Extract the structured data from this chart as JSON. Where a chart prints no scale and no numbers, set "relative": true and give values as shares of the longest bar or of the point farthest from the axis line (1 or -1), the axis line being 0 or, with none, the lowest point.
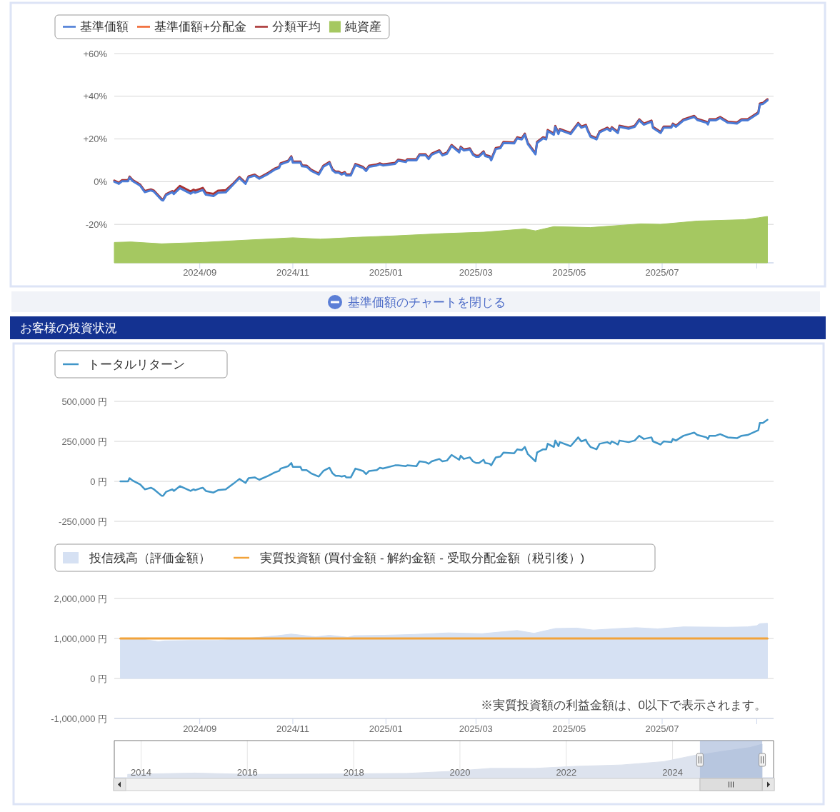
{
  "chart_data": [
    {
      "type": "line",
      "legend": "top left",
      "grid": "y",
      "xlim": [
        "2024-07-07",
        "2025-09-12"
      ],
      "xticks": [
        {
          "value": "2024-09-01",
          "label": "2024/09"
        },
        {
          "value": "2024-11-01",
          "label": "2024/11"
        },
        {
          "value": "2025-01-01",
          "label": "2025/01"
        },
        {
          "value": "2025-03-01",
          "label": "2025/03"
        },
        {
          "value": "2025-05-01",
          "label": "2025/05"
        },
        {
          "value": "2025-07-01",
          "label": "2025/07"
        },
        {
          "value": "2025-09-01",
          "label": null
        }
      ],
      "ylim": [
        -38,
        60
      ],
      "yticks": [
        {
          "value": 60,
          "label": "+60%"
        },
        {
          "value": 40,
          "label": "+40%"
        },
        {
          "value": 20,
          "label": "+20%"
        },
        {
          "value": 0,
          "label": "0%"
        },
        {
          "value": -20,
          "label": "-20%"
        }
      ],
      "annotations": [
        "基準価額のチャートを閉じる"
      ],
      "x": [
        "2024-07-07",
        "2024-07-10",
        "2024-07-12",
        "2024-07-16",
        "2024-07-17",
        "2024-07-19",
        "2024-07-24",
        "2024-07-27",
        "2024-07-31",
        "2024-08-02",
        "2024-08-07",
        "2024-08-08",
        "2024-08-10",
        "2024-08-14",
        "2024-08-15",
        "2024-08-19",
        "2024-08-26",
        "2024-08-28",
        "2024-08-29",
        "2024-09-01",
        "2024-09-03",
        "2024-09-05",
        "2024-09-10",
        "2024-09-13",
        "2024-09-18",
        "2024-09-23",
        "2024-09-27",
        "2024-10-01",
        "2024-10-03",
        "2024-10-07",
        "2024-10-10",
        "2024-10-16",
        "2024-10-20",
        "2024-10-23",
        "2024-10-24",
        "2024-10-29",
        "2024-10-31",
        "2024-11-01",
        "2024-11-06",
        "2024-11-07",
        "2024-11-10",
        "2024-11-13",
        "2024-11-18",
        "2024-11-21",
        "2024-11-25",
        "2024-11-27",
        "2024-11-29",
        "2024-12-01",
        "2024-12-03",
        "2024-12-05",
        "2024-12-06",
        "2024-12-09",
        "2024-12-12",
        "2024-12-17",
        "2024-12-19",
        "2024-12-21",
        "2024-12-26",
        "2024-12-28",
        "2024-12-30",
        "2025-01-07",
        "2025-01-09",
        "2025-01-14",
        "2025-01-15",
        "2025-01-21",
        "2025-01-23",
        "2025-01-27",
        "2025-01-29",
        "2025-01-31",
        "2025-02-05",
        "2025-02-07",
        "2025-02-10",
        "2025-02-13",
        "2025-02-18",
        "2025-02-19",
        "2025-02-21",
        "2025-02-25",
        "2025-02-27",
        "2025-03-01",
        "2025-03-03",
        "2025-03-06",
        "2025-03-07",
        "2025-03-10",
        "2025-03-11",
        "2025-03-14",
        "2025-03-17",
        "2025-03-19",
        "2025-03-26",
        "2025-03-28",
        "2025-03-31",
        "2025-04-02",
        "2025-04-04",
        "2025-04-09",
        "2025-04-10",
        "2025-04-14",
        "2025-04-16",
        "2025-04-17",
        "2025-04-21",
        "2025-04-22",
        "2025-04-24",
        "2025-04-25",
        "2025-05-02",
        "2025-05-07",
        "2025-05-09",
        "2025-05-12",
        "2025-05-13",
        "2025-05-15",
        "2025-05-19",
        "2025-05-21",
        "2025-05-26",
        "2025-05-28",
        "2025-05-29",
        "2025-06-02",
        "2025-06-03",
        "2025-06-09",
        "2025-06-13",
        "2025-06-16",
        "2025-06-19",
        "2025-06-24",
        "2025-06-25",
        "2025-06-30",
        "2025-07-02",
        "2025-07-07",
        "2025-07-08",
        "2025-07-10",
        "2025-07-15",
        "2025-07-22",
        "2025-07-24",
        "2025-07-30",
        "2025-07-31",
        "2025-08-01",
        "2025-08-05",
        "2025-08-08",
        "2025-08-13",
        "2025-08-19",
        "2025-08-22",
        "2025-08-26",
        "2025-09-02",
        "2025-09-03",
        "2025-09-05",
        "2025-09-08"
      ],
      "series": [
        {
          "name": "基準価額",
          "color": "#4a7bd6",
          "values": [
            0.0,
            -1.0,
            0.2,
            0.2,
            1.9,
            0.3,
            -1.9,
            -4.9,
            -4.1,
            -4.7,
            -8.6,
            -8.8,
            -6.3,
            -4.9,
            -5.8,
            -3.0,
            -5.6,
            -4.7,
            -5.2,
            -4.4,
            -3.9,
            -6.1,
            -6.7,
            -5.2,
            -5.0,
            -1.3,
            1.7,
            -1.0,
            2.0,
            2.8,
            1.4,
            3.7,
            5.6,
            6.4,
            8.1,
            9.4,
            11.4,
            8.9,
            8.9,
            7.2,
            7.0,
            5.1,
            3.3,
            7.0,
            8.7,
            5.3,
            4.2,
            4.2,
            3.3,
            4.0,
            2.9,
            2.9,
            7.8,
            6.4,
            5.0,
            7.0,
            7.6,
            8.1,
            7.6,
            8.3,
            9.8,
            9.2,
            10.0,
            10.0,
            12.3,
            12.3,
            10.6,
            12.6,
            14.2,
            12.3,
            13.1,
            16.7,
            13.7,
            15.9,
            14.6,
            15.1,
            12.6,
            11.7,
            11.7,
            13.7,
            12.0,
            11.4,
            10.0,
            15.3,
            15.7,
            18.1,
            17.9,
            20.3,
            19.8,
            22.0,
            17.6,
            12.8,
            18.1,
            20.3,
            19.8,
            23.7,
            22.0,
            25.6,
            22.3,
            24.2,
            22.3,
            27.0,
            25.3,
            26.1,
            24.2,
            21.1,
            19.8,
            23.1,
            24.8,
            23.7,
            25.0,
            22.8,
            25.7,
            24.8,
            25.7,
            28.7,
            26.7,
            28.1,
            25.1,
            22.8,
            25.3,
            25.3,
            26.7,
            25.7,
            28.7,
            30.3,
            28.9,
            27.6,
            26.8,
            28.7,
            28.7,
            29.8,
            27.6,
            27.2,
            28.7,
            28.7,
            32.0,
            36.1,
            36.4,
            38.1
          ]
        },
        {
          "name": "基準価額+分配金",
          "color": "#f0652f",
          "values": [
            null,
            null,
            null,
            null,
            null,
            null,
            null,
            null,
            null,
            null,
            null,
            null,
            null,
            null,
            null,
            null,
            null,
            null,
            null,
            null,
            null,
            null,
            null,
            null,
            null,
            null,
            null,
            null,
            null,
            null,
            null,
            null,
            null,
            null,
            null,
            null,
            null,
            null,
            null,
            null,
            null,
            null,
            null,
            null,
            null,
            null,
            null,
            null,
            null,
            null,
            null,
            null,
            null,
            null,
            null,
            null,
            null,
            null,
            null,
            null,
            null,
            null,
            null,
            null,
            null,
            null,
            null,
            null,
            null,
            null,
            null,
            null,
            null,
            null,
            null,
            null,
            null,
            null,
            null,
            null,
            null,
            null,
            null,
            null,
            null,
            null,
            null,
            null,
            null,
            null,
            null,
            null,
            null,
            null,
            null,
            null,
            null,
            null,
            null,
            null,
            null,
            null,
            null,
            null,
            null,
            null,
            null,
            null,
            null,
            null,
            null,
            null,
            null,
            null,
            null,
            null,
            null,
            null,
            null,
            null,
            null,
            null,
            null,
            null,
            null,
            null,
            null,
            null,
            null,
            null,
            null,
            null,
            null,
            null,
            null,
            null,
            null,
            null,
            null,
            null
          ]
        },
        {
          "name": "分類平均",
          "color": "#a83232",
          "values": [
            0.5,
            -0.5,
            0.7,
            0.7,
            2.4,
            0.8,
            -1.4,
            -4.4,
            -3.6,
            -4.2,
            -8.1,
            -8.3,
            -5.8,
            -4.4,
            -4.8,
            -2.0,
            -4.6,
            -3.7,
            -4.2,
            -3.4,
            -2.9,
            -5.1,
            -5.7,
            -4.2,
            -4.0,
            -0.8,
            2.2,
            -0.5,
            2.5,
            3.3,
            1.9,
            4.2,
            6.1,
            6.9,
            8.6,
            9.9,
            11.9,
            9.4,
            9.4,
            7.7,
            7.5,
            5.6,
            3.8,
            7.5,
            9.2,
            5.8,
            4.7,
            4.7,
            3.8,
            4.5,
            3.4,
            3.4,
            8.3,
            6.9,
            5.5,
            7.5,
            8.1,
            8.6,
            8.1,
            8.8,
            10.3,
            9.7,
            10.5,
            10.5,
            12.8,
            12.8,
            11.1,
            13.1,
            14.7,
            12.8,
            13.6,
            17.2,
            14.2,
            16.4,
            15.1,
            15.6,
            13.1,
            12.2,
            12.2,
            14.2,
            12.5,
            11.9,
            10.5,
            15.8,
            16.2,
            18.6,
            18.4,
            20.8,
            20.3,
            22.5,
            18.1,
            13.3,
            18.6,
            20.8,
            20.3,
            24.2,
            22.5,
            26.1,
            22.8,
            24.7,
            22.8,
            27.5,
            25.8,
            26.6,
            24.7,
            21.6,
            20.3,
            23.6,
            25.3,
            24.2,
            25.5,
            23.3,
            26.2,
            25.3,
            26.2,
            29.2,
            27.2,
            28.6,
            25.6,
            23.3,
            25.8,
            25.8,
            27.2,
            26.2,
            29.2,
            30.8,
            29.4,
            28.1,
            27.3,
            29.2,
            29.2,
            30.3,
            28.1,
            27.7,
            29.2,
            29.2,
            32.5,
            36.6,
            36.9,
            38.6
          ]
        }
      ]
    },
    {
      "type": "area",
      "relative": true,
      "legend": "top left",
      "tick_labels": false,
      "xlim": [
        "2024-07-07",
        "2025-09-12"
      ],
      "x": [
        "2024-07-07",
        "2024-07-18",
        "2024-08-07",
        "2024-09-03",
        "2024-09-26",
        "2024-11-01",
        "2024-11-19",
        "2024-12-13",
        "2025-01-06",
        "2025-02-07",
        "2025-03-06",
        "2025-04-02",
        "2025-04-09",
        "2025-04-21",
        "2025-05-15",
        "2025-06-17",
        "2025-06-30",
        "2025-07-24",
        "2025-08-24",
        "2025-09-02",
        "2025-09-08"
      ],
      "series": [
        {
          "name": "純資産",
          "color": "#a5c861",
          "values": [
            0.44,
            0.45,
            0.41,
            0.44,
            0.48,
            0.54,
            0.51,
            0.55,
            0.58,
            0.63,
            0.66,
            0.73,
            0.69,
            0.78,
            0.76,
            0.84,
            0.83,
            0.9,
            0.93,
            0.97,
            1
          ]
        }
      ]
    },
    {
      "type": "line",
      "title": "お客様の投資状況",
      "legend": "top left",
      "grid": "y",
      "tick_labels": "y",
      "xlim": [
        "2024-07-07",
        "2025-09-12"
      ],
      "ylim": [
        -250000,
        500000
      ],
      "yticks": [
        {
          "value": 500000,
          "label": "500,000 円"
        },
        {
          "value": 250000,
          "label": "250,000 円"
        },
        {
          "value": 0,
          "label": "0 円"
        },
        {
          "value": -250000,
          "label": "-250,000 円"
        }
      ],
      "x": [
        "2024-07-11",
        "2024-07-16",
        "2024-07-17",
        "2024-07-19",
        "2024-07-24",
        "2024-07-27",
        "2024-07-31",
        "2024-08-02",
        "2024-08-07",
        "2024-08-08",
        "2024-08-10",
        "2024-08-14",
        "2024-08-15",
        "2024-08-19",
        "2024-08-26",
        "2024-08-28",
        "2024-08-29",
        "2024-09-01",
        "2024-09-03",
        "2024-09-05",
        "2024-09-10",
        "2024-09-13",
        "2024-09-18",
        "2024-09-23",
        "2024-09-27",
        "2024-10-01",
        "2024-10-03",
        "2024-10-07",
        "2024-10-10",
        "2024-10-16",
        "2024-10-20",
        "2024-10-23",
        "2024-10-24",
        "2024-10-29",
        "2024-10-31",
        "2024-11-01",
        "2024-11-06",
        "2024-11-07",
        "2024-11-10",
        "2024-11-13",
        "2024-11-18",
        "2024-11-21",
        "2024-11-25",
        "2024-11-27",
        "2024-11-29",
        "2024-12-01",
        "2024-12-03",
        "2024-12-05",
        "2024-12-06",
        "2024-12-09",
        "2024-12-12",
        "2024-12-17",
        "2024-12-19",
        "2024-12-21",
        "2024-12-26",
        "2024-12-28",
        "2024-12-30",
        "2025-01-07",
        "2025-01-09",
        "2025-01-14",
        "2025-01-15",
        "2025-01-21",
        "2025-01-23",
        "2025-01-27",
        "2025-01-29",
        "2025-01-31",
        "2025-02-05",
        "2025-02-07",
        "2025-02-10",
        "2025-02-13",
        "2025-02-18",
        "2025-02-19",
        "2025-02-21",
        "2025-02-25",
        "2025-02-27",
        "2025-03-01",
        "2025-03-03",
        "2025-03-06",
        "2025-03-07",
        "2025-03-10",
        "2025-03-11",
        "2025-03-14",
        "2025-03-17",
        "2025-03-19",
        "2025-03-26",
        "2025-03-28",
        "2025-03-31",
        "2025-04-02",
        "2025-04-04",
        "2025-04-09",
        "2025-04-10",
        "2025-04-14",
        "2025-04-16",
        "2025-04-17",
        "2025-04-21",
        "2025-04-22",
        "2025-04-24",
        "2025-04-25",
        "2025-05-02",
        "2025-05-07",
        "2025-05-09",
        "2025-05-12",
        "2025-05-13",
        "2025-05-15",
        "2025-05-19",
        "2025-05-21",
        "2025-05-26",
        "2025-05-28",
        "2025-05-29",
        "2025-06-02",
        "2025-06-03",
        "2025-06-09",
        "2025-06-13",
        "2025-06-16",
        "2025-06-19",
        "2025-06-24",
        "2025-06-25",
        "2025-06-30",
        "2025-07-02",
        "2025-07-07",
        "2025-07-08",
        "2025-07-10",
        "2025-07-15",
        "2025-07-22",
        "2025-07-24",
        "2025-07-30",
        "2025-07-31",
        "2025-08-01",
        "2025-08-05",
        "2025-08-08",
        "2025-08-13",
        "2025-08-19",
        "2025-08-22",
        "2025-08-26",
        "2025-09-02",
        "2025-09-03",
        "2025-09-05",
        "2025-09-08"
      ],
      "series": [
        {
          "name": "トータルリターン",
          "color": "#4096c8",
          "values": [
            0,
            0,
            20000,
            5000,
            -20000,
            -50000,
            -40000,
            -50000,
            -90000,
            -90000,
            -65000,
            -50000,
            -60000,
            -30000,
            -60000,
            -50000,
            -55000,
            -45000,
            -40000,
            -60000,
            -70000,
            -55000,
            -50000,
            -15000,
            15000,
            -10000,
            20000,
            25000,
            10000,
            35000,
            55000,
            65000,
            80000,
            95000,
            115000,
            90000,
            90000,
            70000,
            70000,
            50000,
            30000,
            65000,
            85000,
            50000,
            35000,
            35000,
            30000,
            35000,
            25000,
            25000,
            80000,
            65000,
            45000,
            65000,
            70000,
            85000,
            80000,
            100000,
            100000,
            95000,
            100000,
            95000,
            125000,
            120000,
            110000,
            125000,
            140000,
            125000,
            130000,
            165000,
            135000,
            160000,
            140000,
            150000,
            125000,
            115000,
            115000,
            135000,
            115000,
            110000,
            100000,
            150000,
            155000,
            180000,
            175000,
            200000,
            195000,
            215000,
            170000,
            125000,
            180000,
            200000,
            200000,
            235000,
            215000,
            255000,
            220000,
            245000,
            220000,
            275000,
            250000,
            260000,
            240000,
            215000,
            200000,
            235000,
            245000,
            235000,
            250000,
            230000,
            255000,
            245000,
            255000,
            285000,
            265000,
            275000,
            250000,
            230000,
            250000,
            245000,
            265000,
            255000,
            285000,
            305000,
            290000,
            275000,
            265000,
            285000,
            285000,
            295000,
            275000,
            270000,
            285000,
            290000,
            320000,
            365000,
            365000,
            385000
          ]
        }
      ]
    },
    {
      "type": "area",
      "legend": "top left",
      "grid": "y",
      "xlim": [
        "2024-07-07",
        "2025-09-12"
      ],
      "xticks": [
        {
          "value": "2024-09-01",
          "label": "2024/09"
        },
        {
          "value": "2024-11-01",
          "label": "2024/11"
        },
        {
          "value": "2025-01-01",
          "label": "2025/01"
        },
        {
          "value": "2025-03-01",
          "label": "2025/03"
        },
        {
          "value": "2025-05-01",
          "label": "2025/05"
        },
        {
          "value": "2025-07-01",
          "label": "2025/07"
        },
        {
          "value": "2025-09-01",
          "label": null
        }
      ],
      "ylim": [
        -1000000,
        2000000
      ],
      "yticks": [
        {
          "value": 2000000,
          "label": "2,000,000 円"
        },
        {
          "value": 1000000,
          "label": "1,000,000 円"
        },
        {
          "value": 0,
          "label": "0 円"
        },
        {
          "value": -1000000,
          "label": "-1,000,000 円"
        }
      ],
      "annotations": [
        "※実質投資額の利益金額は、0以下で表示されます。"
      ],
      "series": [
        {
          "name": "投信残高（評価金額）",
          "color": "#d6e1f3",
          "x": [
            "2024-07-11",
            "2024-07-24",
            "2024-08-05",
            "2024-08-09",
            "2024-08-27",
            "2024-09-13",
            "2024-10-02",
            "2024-10-22",
            "2024-10-31",
            "2024-11-16",
            "2024-11-25",
            "2024-12-07",
            "2024-12-11",
            "2024-12-31",
            "2025-01-19",
            "2025-02-11",
            "2025-03-05",
            "2025-03-28",
            "2025-04-08",
            "2025-04-22",
            "2025-05-06",
            "2025-05-17",
            "2025-06-03",
            "2025-06-14",
            "2025-06-28",
            "2025-07-15",
            "2025-08-12",
            "2025-08-26",
            "2025-09-01",
            "2025-09-03",
            "2025-09-08"
          ],
          "values": [
            1000000,
            990000,
            920000,
            940000,
            950000,
            950000,
            1000000,
            1070000,
            1110000,
            1040000,
            1080000,
            1030000,
            1070000,
            1080000,
            1100000,
            1140000,
            1120000,
            1200000,
            1130000,
            1250000,
            1260000,
            1210000,
            1250000,
            1270000,
            1240000,
            1290000,
            1280000,
            1290000,
            1320000,
            1370000,
            1380000
          ]
        },
        {
          "name": "実質投資額 (買付金額 - 解約金額 - 受取分配金額（税引後）)",
          "type": "line",
          "color": "#f2a33a",
          "x": [
            "2024-07-11",
            "2025-09-08"
          ],
          "values": [
            1000000,
            1000000
          ]
        }
      ]
    },
    {
      "type": "area",
      "relative": true,
      "grid": "x",
      "xlim": [
        "2013-07-01",
        "2025-11-25"
      ],
      "xticks": [
        {
          "value": "2014-01-01",
          "label": "2014"
        },
        {
          "value": "2016-01-01",
          "label": "2016"
        },
        {
          "value": "2018-01-01",
          "label": "2018"
        },
        {
          "value": "2020-01-01",
          "label": "2020"
        },
        {
          "value": "2022-01-01",
          "label": "2022"
        },
        {
          "value": "2024-01-01",
          "label": "2024"
        }
      ],
      "x": [
        "2013-10-01",
        "2015-01-01",
        "2016-01-15",
        "2017-05-01",
        "2019-01-01",
        "2019-11-01",
        "2020-08-01",
        "2021-06-01",
        "2022-03-01",
        "2023-01-15",
        "2023-11-01",
        "2024-06-15",
        "2024-08-15",
        "2025-01-15",
        "2025-06-15",
        "2025-09-08"
      ],
      "series": [
        {
          "color": "#dde3ee",
          "values": [
            0.1,
            0.14,
            0.1,
            0.11,
            0.13,
            0.19,
            0.28,
            0.28,
            0.34,
            0.38,
            0.48,
            0.68,
            0.71,
            0.81,
            0.9,
            1
          ]
        }
      ],
      "bands": [
        {
          "axis": "x",
          "from": "2024-07-07",
          "to": "2025-09-08",
          "color": "#9fb3d5"
        }
      ]
    }
  ]
}
